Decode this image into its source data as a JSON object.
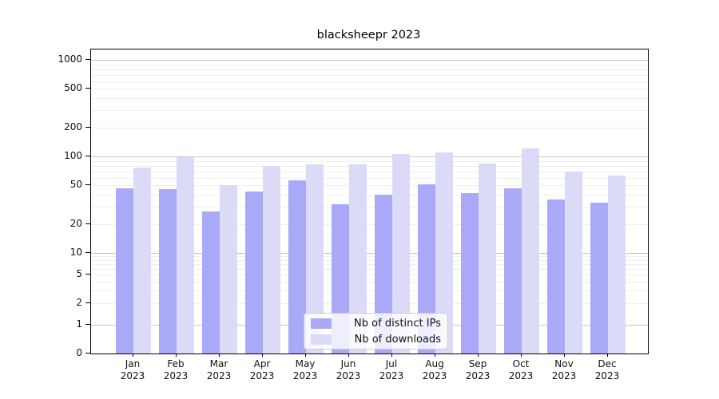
{
  "title": "blacksheepr 2023",
  "colors": {
    "distinct_ips_bar": "#a9a9f7",
    "downloads_bar": "#dbdbf8",
    "major_gridline": "#c7c7c7",
    "minor_gridline": "#efefef",
    "axis_spine": "#000000",
    "legend_border": "#cccccc"
  },
  "legend": {
    "items": [
      {
        "label": "Nb of distinct IPs",
        "color": "#a9a9f7"
      },
      {
        "label": "Nb of downloads",
        "color": "#dbdbf8"
      }
    ]
  },
  "chart_data": {
    "type": "bar",
    "title": "blacksheepr 2023",
    "y_scale": "symlog",
    "ylim": [
      0,
      1000
    ],
    "grid": true,
    "legend_position": "lower center",
    "categories": [
      "Jan",
      "Feb",
      "Mar",
      "Apr",
      "May",
      "Jun",
      "Jul",
      "Aug",
      "Sep",
      "Oct",
      "Nov",
      "Dec"
    ],
    "x_year_line": "2023",
    "y_tick_labels": [
      1000,
      500,
      200,
      100,
      50,
      20,
      10,
      5,
      2,
      1,
      0
    ],
    "series": [
      {
        "name": "Nb of distinct IPs",
        "color": "#a9a9f7",
        "values": [
          47,
          46,
          27,
          43,
          57,
          32,
          40,
          51,
          42,
          47,
          36,
          33
        ]
      },
      {
        "name": "Nb of downloads",
        "color": "#dbdbf8",
        "values": [
          77,
          98,
          50,
          80,
          83,
          82,
          105,
          110,
          85,
          120,
          70,
          63
        ]
      }
    ]
  }
}
